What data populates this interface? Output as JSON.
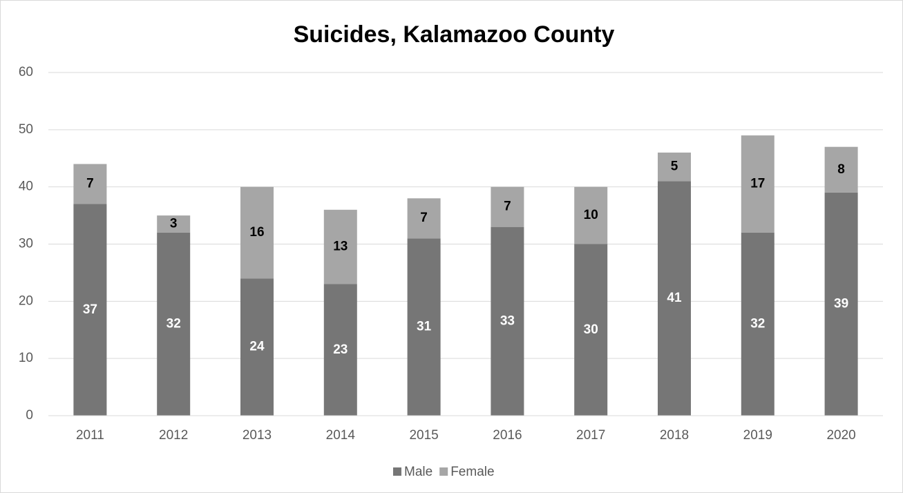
{
  "chart_data": {
    "type": "bar",
    "stacked": true,
    "title": "Suicides, Kalamazoo County",
    "categories": [
      "2011",
      "2012",
      "2013",
      "2014",
      "2015",
      "2016",
      "2017",
      "2018",
      "2019",
      "2020"
    ],
    "series": [
      {
        "name": "Male",
        "color": "#767676",
        "label_color": "#ffffff",
        "values": [
          37,
          32,
          24,
          23,
          31,
          33,
          30,
          41,
          32,
          39
        ]
      },
      {
        "name": "Female",
        "color": "#a6a6a6",
        "label_color": "#000000",
        "values": [
          7,
          3,
          16,
          13,
          7,
          7,
          10,
          5,
          17,
          8
        ]
      }
    ],
    "ylim": [
      0,
      60
    ],
    "yticks": [
      0,
      10,
      20,
      30,
      40,
      50,
      60
    ],
    "grid": true,
    "legend": "bottom"
  }
}
